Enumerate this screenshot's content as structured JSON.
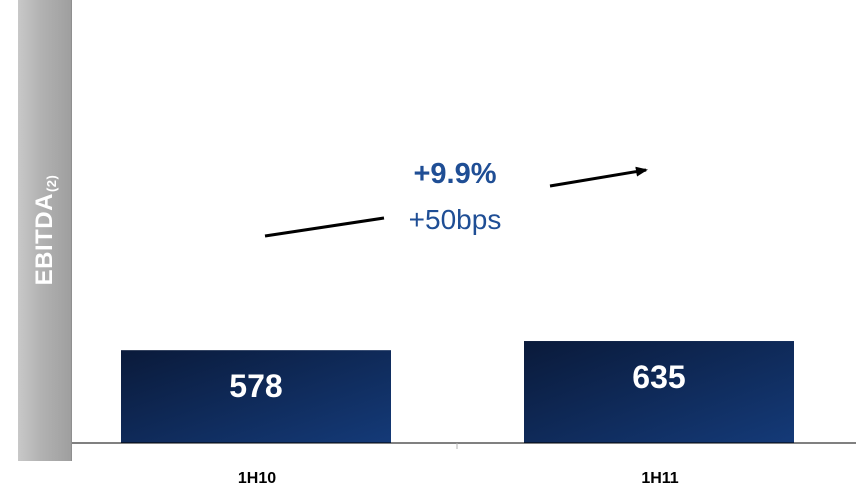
{
  "side_label": {
    "main": "EBITDA",
    "sub": "(2)"
  },
  "annotation": {
    "growth": "+9.9%",
    "margin": "+50bps"
  },
  "colors": {
    "bar_dark": "#0a1a3a",
    "bar_light": "#143a78",
    "annotation": "#1f4e95",
    "side_label": "#b3b3b3"
  },
  "chart_data": {
    "type": "bar",
    "categories": [
      "1H10",
      "1H11"
    ],
    "values": [
      578,
      635
    ],
    "data_labels": [
      "578",
      "635"
    ],
    "title": "",
    "xlabel": "",
    "ylabel": "",
    "ylim": [
      0,
      800
    ],
    "grid": false,
    "legend": "none"
  }
}
